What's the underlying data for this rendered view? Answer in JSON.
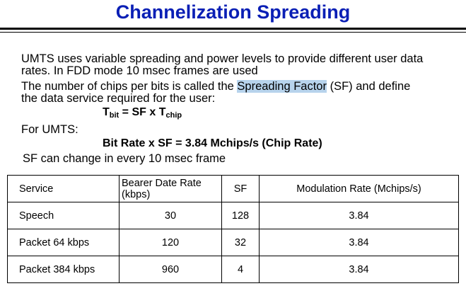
{
  "title": "Channelization Spreading",
  "paragraphs": {
    "p1_line1": "UMTS uses variable spreading and power levels to provide different user data",
    "p1_line2": "rates.  In FDD mode 10 msec frames are used",
    "p2_line1_before": "The number of chips per bits is called the ",
    "p2_line1_highlight": "Spreading Factor",
    "p2_line1_after": " (SF) and define",
    "p2_line2": "the data service required for the user:"
  },
  "formula1": {
    "t": "T",
    "bit_sub": "bit",
    "middle": " = SF x T",
    "chip_sub": "chip"
  },
  "for_umts": "For UMTS:",
  "formula2": "Bit Rate x SF = 3.84 Mchips/s (Chip Rate)",
  "sf_change": "SF can change in every 10 msec frame",
  "table": {
    "headers": [
      "Service",
      "Bearer Date Rate (kbps)",
      "SF",
      "Modulation Rate (Mchips/s)"
    ],
    "rows": [
      [
        "Speech",
        "30",
        "128",
        "3.84"
      ],
      [
        "Packet 64 kbps",
        "120",
        "32",
        "3.84"
      ],
      [
        "Packet 384 kbps",
        "960",
        "4",
        "3.84"
      ]
    ]
  },
  "colors": {
    "title": "#0a1fb5",
    "highlight": "#b7d3ec"
  }
}
